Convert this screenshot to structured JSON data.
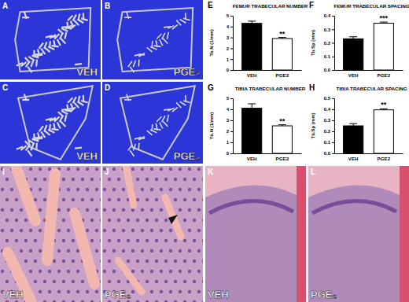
{
  "chart_data": [
    {
      "type": "bar",
      "panel_label": "E",
      "title": "FEMUR TRABECULAR NUMBER",
      "y_label": "Tb.N (1/mm)",
      "categories": [
        "VEH",
        "PGE2"
      ],
      "values": [
        4.3,
        2.9
      ],
      "errors": [
        0.2,
        0.1
      ],
      "colors": [
        "#000000",
        "#ffffff"
      ],
      "annotations": [
        null,
        "**"
      ],
      "ylim": [
        0,
        5
      ],
      "yticks": [
        0,
        1,
        2,
        3,
        4,
        5
      ],
      "grid": false
    },
    {
      "type": "bar",
      "panel_label": "F",
      "title": "FEMUR TRABECULAR SPACING",
      "y_label": "Tb.Sp (mm)",
      "categories": [
        "VEH",
        "PGE2"
      ],
      "values": [
        0.23,
        0.345
      ],
      "errors": [
        0.015,
        0.008
      ],
      "colors": [
        "#000000",
        "#ffffff"
      ],
      "annotations": [
        null,
        "***"
      ],
      "ylim": [
        0,
        0.4
      ],
      "yticks": [
        {
          "value": 0,
          "label": "0.0"
        },
        0.1,
        0.2,
        0.3,
        0.4
      ],
      "grid": false
    },
    {
      "type": "bar",
      "panel_label": "G",
      "title": "TIBIA TRABECULAR NUMBER",
      "y_label": "Tb.N (1/mm)",
      "categories": [
        "VEH",
        "PGE2"
      ],
      "values": [
        4.1,
        2.5
      ],
      "errors": [
        0.4,
        0.1
      ],
      "colors": [
        "#000000",
        "#ffffff"
      ],
      "annotations": [
        null,
        "**"
      ],
      "ylim": [
        0,
        5
      ],
      "yticks": [
        0,
        1,
        2,
        3,
        4,
        5
      ],
      "grid": false
    },
    {
      "type": "bar",
      "panel_label": "H",
      "title": "TIBIA TRABECULAR SPACING",
      "y_label": "Tb.Sp (mm)",
      "categories": [
        "VEH",
        "PGE2"
      ],
      "values": [
        0.25,
        0.395
      ],
      "errors": [
        0.02,
        0.01
      ],
      "colors": [
        "#000000",
        "#ffffff"
      ],
      "annotations": [
        null,
        "**"
      ],
      "ylim": [
        0,
        0.5
      ],
      "yticks": [
        {
          "value": 0,
          "label": "0.0"
        },
        0.1,
        0.2,
        0.3,
        0.4,
        0.5
      ],
      "grid": false
    }
  ],
  "image_panels": [
    {
      "panel": "A",
      "label": "VEH"
    },
    {
      "panel": "B",
      "label": "PGE₂"
    },
    {
      "panel": "C",
      "label": "VEH"
    },
    {
      "panel": "D",
      "label": "PGE₂"
    },
    {
      "panel": "I",
      "label": "VEH"
    },
    {
      "panel": "J",
      "label": "PGE₂"
    },
    {
      "panel": "K",
      "label": "VEH"
    },
    {
      "panel": "L",
      "label": "PGE₂"
    }
  ]
}
